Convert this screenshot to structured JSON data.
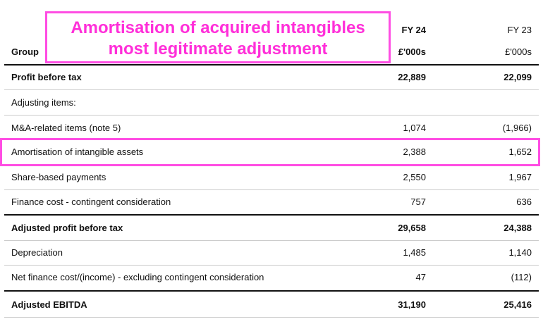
{
  "callout": {
    "line1": "Amortisation of acquired intangibles",
    "line2": "most legitimate adjustment"
  },
  "header": {
    "col1_title": "FY 24",
    "col2_title": "FY 23",
    "group_label": "Group",
    "col1_unit": "£'000s",
    "col2_unit": "£'000s"
  },
  "rows": [
    {
      "label": "Profit before tax",
      "fy24": "22,889",
      "fy23": "22,099"
    },
    {
      "label": "Adjusting items:",
      "fy24": "",
      "fy23": ""
    },
    {
      "label": "M&A-related items (note 5)",
      "fy24": "1,074",
      "fy23": "(1,966)"
    },
    {
      "label": "Amortisation of intangible assets",
      "fy24": "2,388",
      "fy23": "1,652"
    },
    {
      "label": "Share-based payments",
      "fy24": "2,550",
      "fy23": "1,967"
    },
    {
      "label": "Finance cost - contingent consideration",
      "fy24": "757",
      "fy23": "636"
    },
    {
      "label": "Adjusted profit before tax",
      "fy24": "29,658",
      "fy23": "24,388"
    },
    {
      "label": "Depreciation",
      "fy24": "1,485",
      "fy23": "1,140"
    },
    {
      "label": "Net finance cost/(income) - excluding contingent consideration",
      "fy24": "47",
      "fy23": "(112)"
    },
    {
      "label": "Adjusted EBITDA",
      "fy24": "31,190",
      "fy23": "25,416"
    }
  ],
  "colors": {
    "highlight": "#ff4de3",
    "callout_text": "#ff2fd9"
  }
}
